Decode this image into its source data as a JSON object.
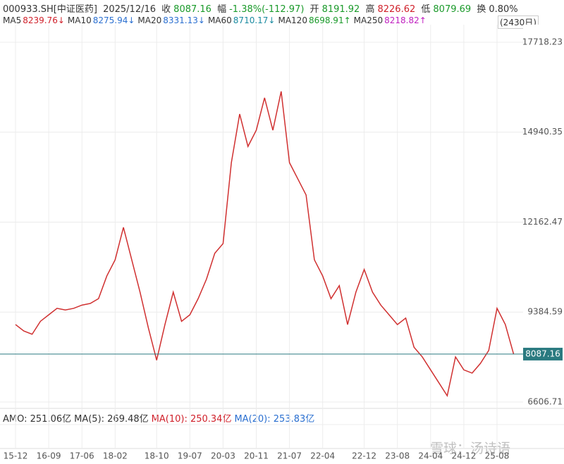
{
  "chart_data": {
    "type": "line",
    "info": {
      "code": "000933.SH[中证医药]",
      "date": "2025/12/16",
      "close_label": "收",
      "close": "8087.16",
      "change_label": "幅",
      "change": "-1.38%(-112.97)",
      "open_label": "开",
      "open": "8191.92",
      "high_label": "高",
      "high": "8226.62",
      "low_label": "低",
      "low": "8079.69",
      "turnover_label": "换",
      "turnover": "0.80%",
      "period": "(2430日)"
    },
    "ma_legend": [
      {
        "name": "MA5",
        "value": "8239.76↓"
      },
      {
        "name": "MA10",
        "value": "8275.94↓"
      },
      {
        "name": "MA20",
        "value": "8331.13↓"
      },
      {
        "name": "MA60",
        "value": "8710.17↓"
      },
      {
        "name": "MA120",
        "value": "8698.91↑"
      },
      {
        "name": "MA250",
        "value": "8218.82↑"
      }
    ],
    "volume_legend": [
      "AMO: 251.06亿",
      "MA(5): 269.48亿",
      "MA(10): 250.34亿",
      "MA(20): 253.83亿"
    ],
    "watermark": "雪球：汤诗语",
    "categories": [
      "15-12",
      null,
      null,
      null,
      "16-09",
      null,
      null,
      null,
      "17-06",
      null,
      null,
      null,
      "18-02",
      null,
      null,
      null,
      null,
      "18-10",
      null,
      null,
      null,
      "19-07",
      null,
      null,
      null,
      "20-03",
      null,
      null,
      null,
      "20-11",
      null,
      null,
      null,
      "21-07",
      null,
      null,
      null,
      "22-04",
      null,
      null,
      null,
      null,
      "22-12",
      null,
      null,
      null,
      "23-08",
      null,
      null,
      null,
      "24-04",
      null,
      null,
      null,
      "24-12",
      null,
      null,
      null,
      "25-08",
      null,
      null
    ],
    "series": [
      {
        "name": "000933.SH",
        "color": "#d03030",
        "values": [
          9000,
          8800,
          8700,
          9100,
          9300,
          9500,
          9450,
          9500,
          9600,
          9650,
          9800,
          10500,
          11000,
          12000,
          11000,
          10000,
          8900,
          7900,
          9000,
          10000,
          9100,
          9300,
          9800,
          10400,
          11200,
          11500,
          14000,
          15500,
          14500,
          15000,
          16000,
          15000,
          16200,
          14000,
          13500,
          13000,
          11000,
          10500,
          9800,
          10200,
          9000,
          10000,
          10700,
          10000,
          9600,
          9300,
          9000,
          9200,
          8300,
          8000,
          7600,
          7200,
          6800,
          8000,
          7600,
          7500,
          7800,
          8200,
          9500,
          9000,
          8087.16
        ]
      }
    ],
    "ylim": [
      6411,
      18261
    ],
    "yticks": [
      6606.71,
      9384.59,
      12162.47,
      14940.35,
      17718.23
    ],
    "grid": true
  }
}
